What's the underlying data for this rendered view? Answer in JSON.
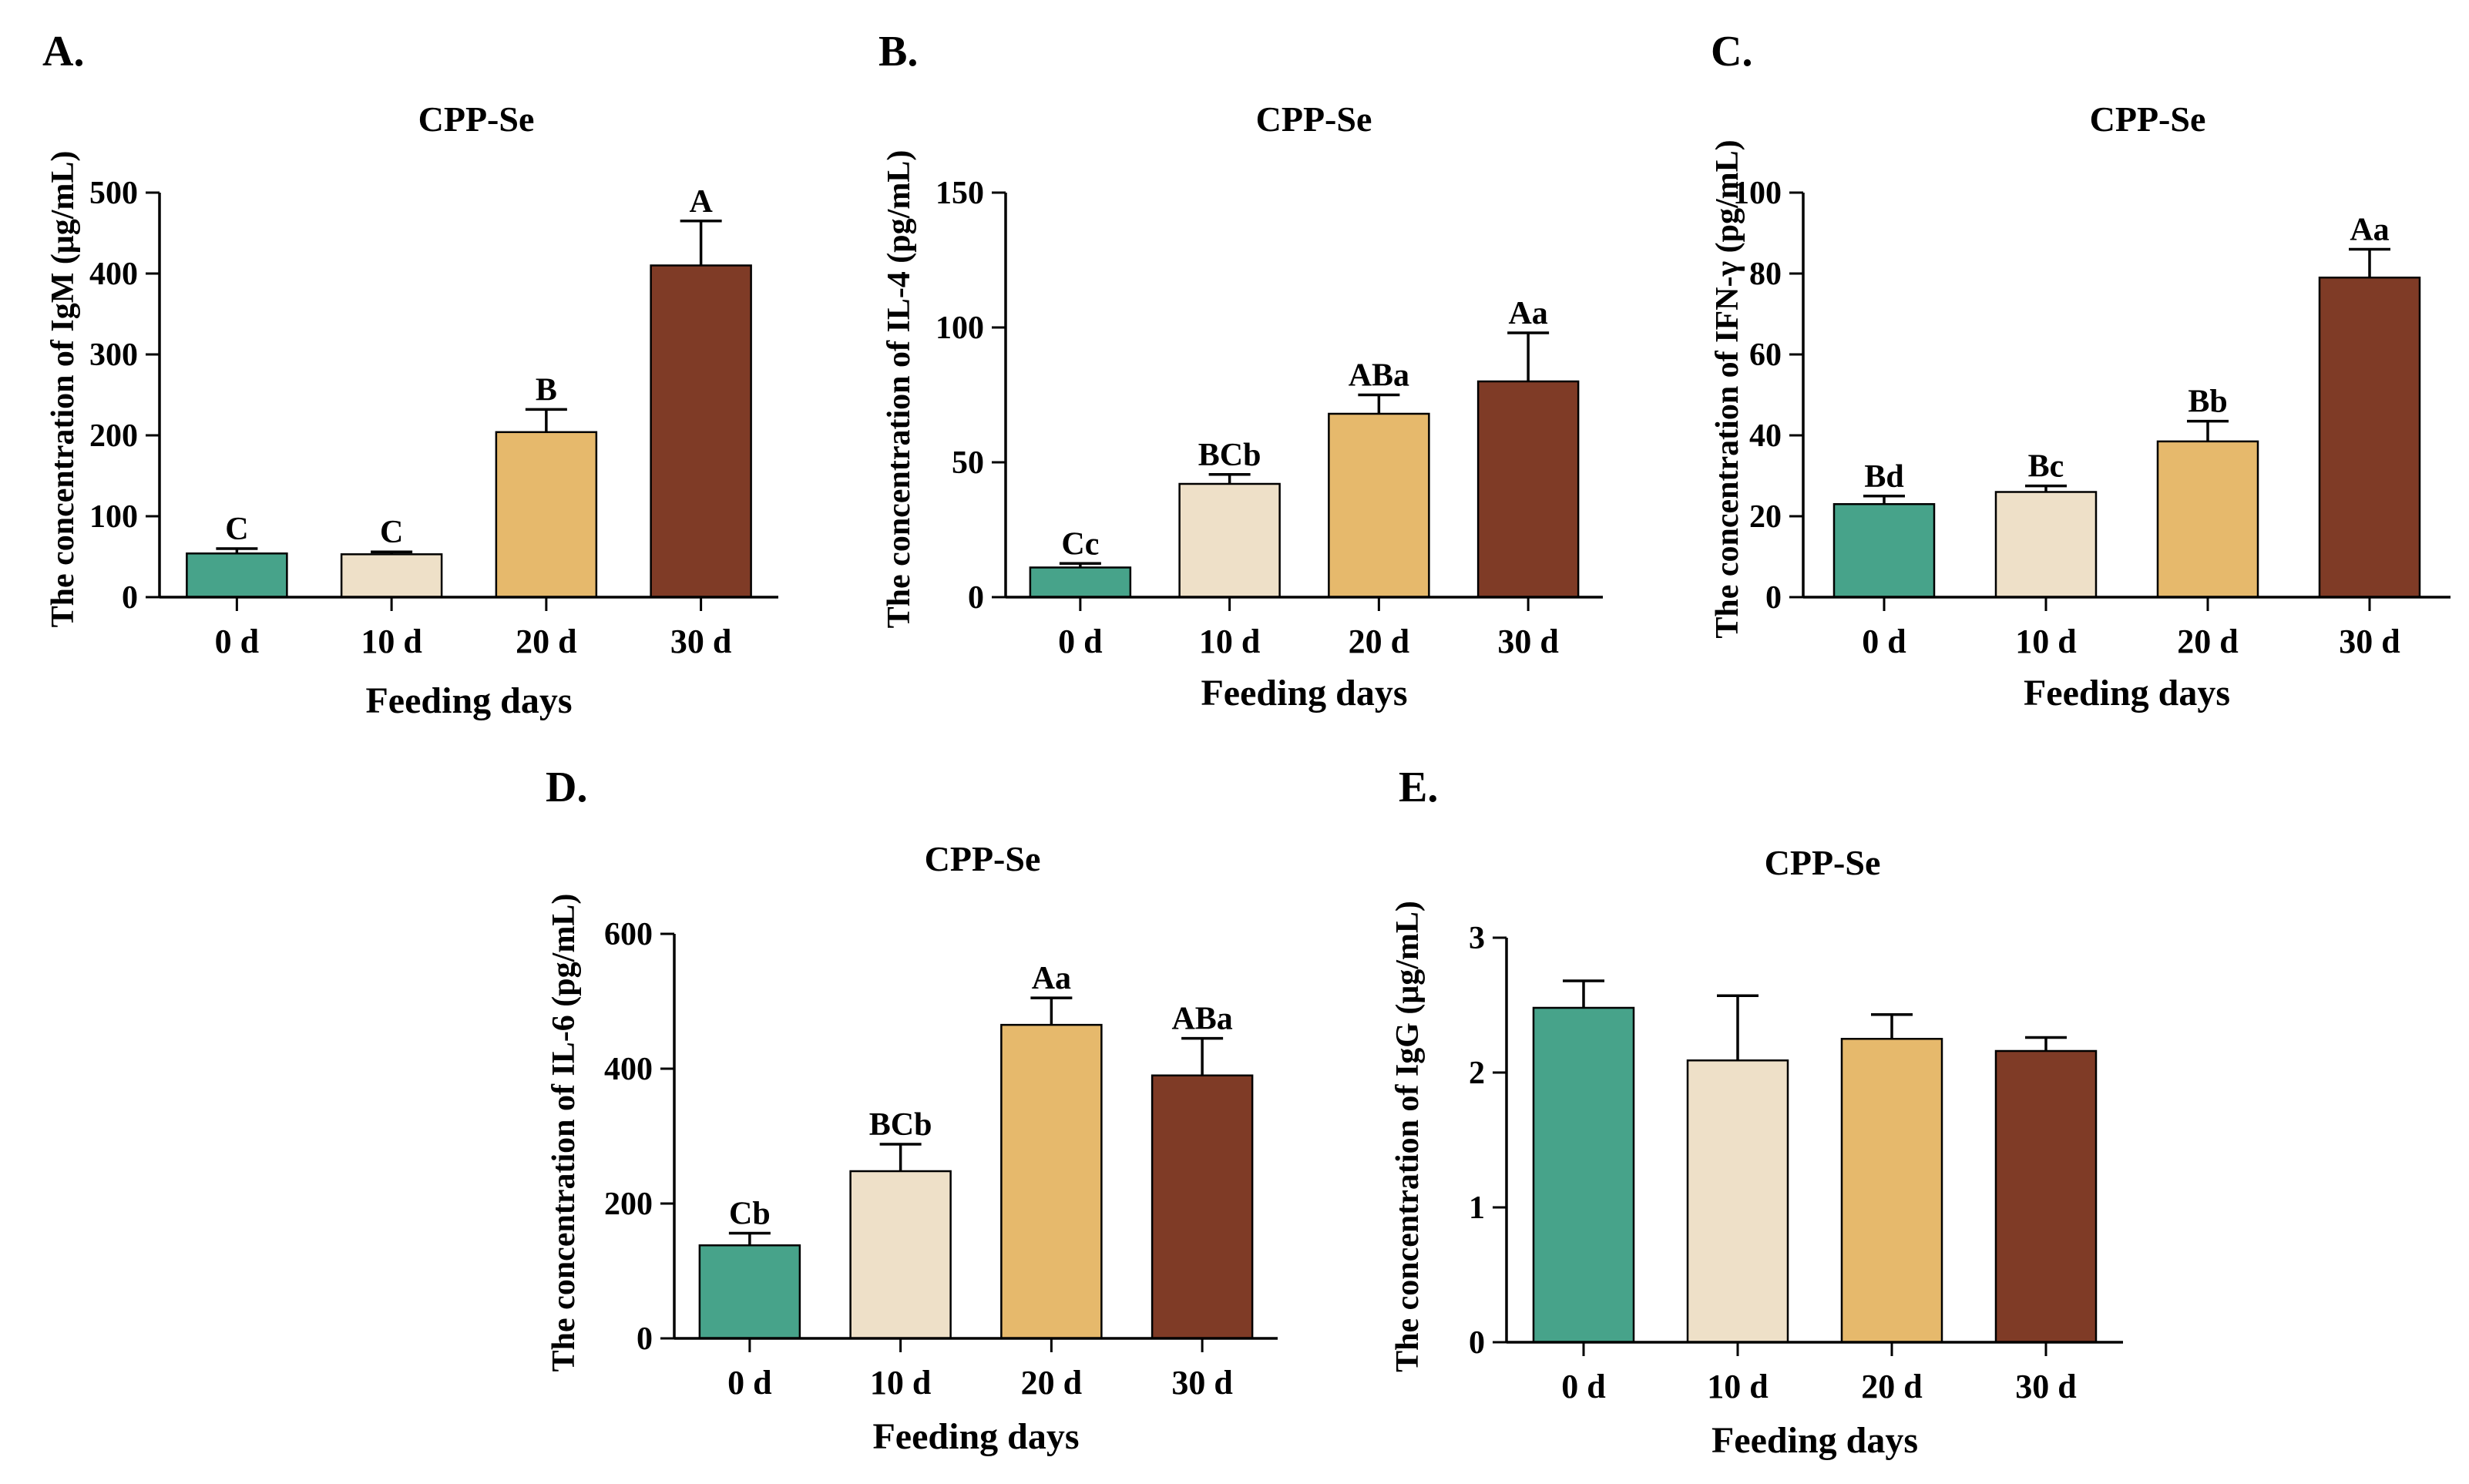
{
  "chart_data": [
    {
      "panel": "A.",
      "type": "bar",
      "title": "CPP-Se",
      "xlabel": "Feeding days",
      "ylabel": "The concentration of IgM (μg/mL)",
      "categories": [
        "0 d",
        "10 d",
        "20 d",
        "30 d"
      ],
      "values": [
        54,
        53,
        204,
        410
      ],
      "errors": [
        6,
        3,
        28,
        55
      ],
      "labels": [
        "C",
        "C",
        "B",
        "A"
      ],
      "colors": [
        "#47a38a",
        "#eee0c8",
        "#e6b96c",
        "#7f3b26"
      ],
      "ylim": [
        0,
        500
      ],
      "yticks": [
        0,
        100,
        200,
        300,
        400,
        500
      ]
    },
    {
      "panel": "B.",
      "type": "bar",
      "title": "CPP-Se",
      "xlabel": "Feeding days",
      "ylabel": "The concentration of IL-4 (pg/mL)",
      "categories": [
        "0 d",
        "10 d",
        "20 d",
        "30 d"
      ],
      "values": [
        11,
        42,
        68,
        80
      ],
      "errors": [
        1.5,
        3.5,
        7,
        18
      ],
      "labels": [
        "Cc",
        "BCb",
        "ABa",
        "Aa"
      ],
      "colors": [
        "#47a38a",
        "#eee0c8",
        "#e6b96c",
        "#7f3b26"
      ],
      "ylim": [
        0,
        150
      ],
      "yticks": [
        0,
        50,
        100,
        150
      ]
    },
    {
      "panel": "C.",
      "type": "bar",
      "title": "CPP-Se",
      "xlabel": "Feeding days",
      "ylabel": "The concentration of IFN-γ (pg/mL)",
      "categories": [
        "0 d",
        "10 d",
        "20 d",
        "30 d"
      ],
      "values": [
        23,
        26,
        38.5,
        79
      ],
      "errors": [
        2,
        1.5,
        5,
        7
      ],
      "labels": [
        "Bd",
        "Bc",
        "Bb",
        "Aa"
      ],
      "colors": [
        "#47a38a",
        "#eee0c8",
        "#e6b96c",
        "#7f3b26"
      ],
      "ylim": [
        0,
        100
      ],
      "yticks": [
        0,
        20,
        40,
        60,
        80,
        100
      ]
    },
    {
      "panel": "D.",
      "type": "bar",
      "title": "CPP-Se",
      "xlabel": "Feeding days",
      "ylabel": "The concentration of IL-6 (pg/mL)",
      "categories": [
        "0 d",
        "10 d",
        "20 d",
        "30 d"
      ],
      "values": [
        138,
        248,
        465,
        390
      ],
      "errors": [
        18,
        40,
        40,
        55
      ],
      "labels": [
        "Cb",
        "BCb",
        "Aa",
        "ABa"
      ],
      "colors": [
        "#47a38a",
        "#eee0c8",
        "#e6b96c",
        "#7f3b26"
      ],
      "ylim": [
        0,
        600
      ],
      "yticks": [
        0,
        200,
        400,
        600
      ]
    },
    {
      "panel": "E.",
      "type": "bar",
      "title": "CPP-Se",
      "xlabel": "Feeding days",
      "ylabel": "The concentration of IgG (μg/mL)",
      "categories": [
        "0 d",
        "10 d",
        "20 d",
        "30 d"
      ],
      "values": [
        2.48,
        2.09,
        2.25,
        2.16
      ],
      "errors": [
        0.2,
        0.48,
        0.18,
        0.1
      ],
      "labels": [
        "",
        "",
        "",
        ""
      ],
      "colors": [
        "#47a38a",
        "#eee0c8",
        "#e6b96c",
        "#7f3b26"
      ],
      "ylim": [
        0,
        3
      ],
      "yticks": [
        0,
        1,
        2,
        3
      ]
    }
  ]
}
